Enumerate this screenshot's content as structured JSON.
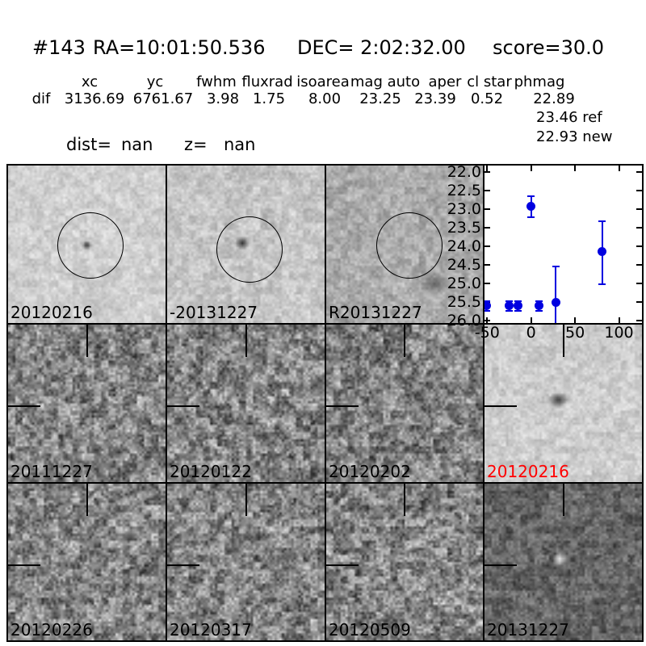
{
  "header": {
    "object_id": "#143",
    "ra": "RA=10:01:50.536",
    "dec": "DEC= 2:02:32.00",
    "score": "score=30.0"
  },
  "measurements": {
    "columns": [
      "xc",
      "yc",
      "fwhm",
      "fluxrad",
      "isoarea",
      "mag auto",
      "aper",
      "cl star",
      "phmag"
    ],
    "row_label": "dif",
    "values": [
      "3136.69",
      "6761.67",
      "3.98",
      "1.75",
      "8.00",
      "23.25",
      "23.39",
      "0.52",
      "22.89"
    ],
    "phmag_ref": "23.46 ref",
    "phmag_new": "22.93 new",
    "dist_label": "dist=",
    "dist_value": "nan",
    "z_label": "z=",
    "z_value": "nan"
  },
  "panels": [
    {
      "label": "20120216",
      "label_color": "#000000",
      "tone": "light",
      "overlay": "circle",
      "blob": "dot-small",
      "type": "image"
    },
    {
      "label": "-20131227",
      "label_color": "#000000",
      "tone": "lightmed",
      "overlay": "circle",
      "blob": "dot",
      "type": "image"
    },
    {
      "label": "R20131227",
      "label_color": "#000000",
      "tone": "medium",
      "overlay": "circle",
      "blob": "smudge",
      "type": "image"
    },
    {
      "label": "",
      "label_color": "#000000",
      "tone": "",
      "overlay": "none",
      "blob": "none",
      "type": "plot"
    },
    {
      "label": "20111227",
      "label_color": "#000000",
      "tone": "dark",
      "overlay": "crosshair",
      "blob": "none",
      "type": "image"
    },
    {
      "label": "20120122",
      "label_color": "#000000",
      "tone": "dark",
      "overlay": "crosshair",
      "blob": "none",
      "type": "image"
    },
    {
      "label": "20120202",
      "label_color": "#000000",
      "tone": "dark",
      "overlay": "crosshair",
      "blob": "none",
      "type": "image"
    },
    {
      "label": "20120216",
      "label_color": "#ff0000",
      "tone": "light2",
      "overlay": "crosshair",
      "blob": "dot-large",
      "type": "image"
    },
    {
      "label": "20120226",
      "label_color": "#000000",
      "tone": "dark",
      "overlay": "crosshair",
      "blob": "none",
      "type": "image"
    },
    {
      "label": "20120317",
      "label_color": "#000000",
      "tone": "dark",
      "overlay": "crosshair",
      "blob": "none",
      "type": "image"
    },
    {
      "label": "20120509",
      "label_color": "#000000",
      "tone": "dark",
      "overlay": "crosshair",
      "blob": "none",
      "type": "image"
    },
    {
      "label": "20131227",
      "label_color": "#000000",
      "tone": "vdark",
      "overlay": "crosshair",
      "blob": "bright",
      "type": "image"
    }
  ],
  "chart_data": {
    "type": "scatter",
    "title": "",
    "xlabel": "",
    "ylabel": "",
    "series": [
      {
        "name": "lightcurve-mag",
        "x": [
          -51,
          -25,
          -15,
          0,
          9,
          28,
          81
        ],
        "y": [
          25.6,
          25.6,
          25.6,
          22.93,
          25.6,
          25.5,
          24.15
        ],
        "yerr_plus": [
          0.13,
          0.13,
          0.13,
          0.28,
          0.13,
          0.95,
          0.82
        ],
        "yerr_minus": [
          0.13,
          0.13,
          0.13,
          0.28,
          0.13,
          1.3,
          0.88
        ]
      }
    ],
    "marker_color": "#0000e0",
    "xticks": [
      -50,
      0,
      50,
      100
    ],
    "xtick_labels": [
      "-50",
      "0",
      "50",
      "100"
    ],
    "yticks": [
      22.0,
      22.5,
      23.0,
      23.5,
      24.0,
      24.5,
      25.0,
      25.5,
      26.0
    ],
    "ytick_labels": [
      "22.0",
      "22.5",
      "23.0",
      "23.5",
      "24.0",
      "24.5",
      "25.0",
      "25.5",
      "26.0"
    ],
    "xlim": [
      -53,
      126
    ],
    "ylim": [
      26.1,
      21.8
    ],
    "y_inverted": true,
    "grid": false,
    "legend": null
  }
}
